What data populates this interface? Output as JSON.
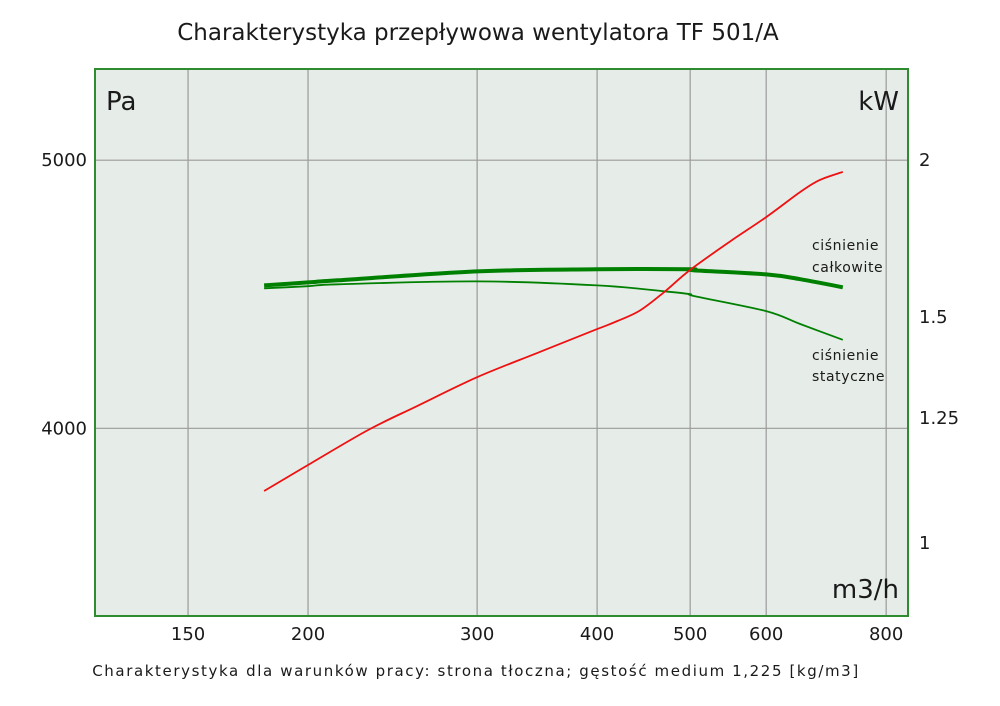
{
  "chart_data": {
    "type": "line",
    "title": "Charakterystyka przepływowa wentylatora TF 501/A",
    "footer": "Charakterystyka dla warunków pracy: strona tłoczna; gęstość medium 1,225 [kg/m3]",
    "xlabel": "m3/h",
    "ylabel_left": "Pa",
    "ylabel_right": "kW",
    "x_scale": "log",
    "xlim": [
      120,
      843
    ],
    "ylim_left": [
      3300,
      5340
    ],
    "x_ticks": [
      150,
      200,
      300,
      400,
      500,
      600,
      800
    ],
    "x_tick_labels": [
      "150",
      "200",
      "300",
      "400",
      "500",
      "600",
      "800"
    ],
    "y_left_ticks": [
      4000,
      5000
    ],
    "y_left_tick_labels": [
      "4000",
      "5000"
    ],
    "y_right_ticks": [
      2,
      1.5,
      1.25,
      1
    ],
    "y_right_tick_labels": [
      "2",
      "1.5",
      "1.25",
      "1"
    ],
    "grid": true,
    "colors": {
      "plot_bg": "#e6ece8",
      "frame": "#2e8b2e",
      "grid": "#9a9a9a",
      "pressure": "#008000",
      "power": "#ee1111"
    },
    "series": [
      {
        "name": "ciśnienie całkowite",
        "label_lines": [
          "ciśnienie",
          "całkowite"
        ],
        "axis": "left",
        "unit": "Pa",
        "style": "thick",
        "x": [
          180,
          200,
          215,
          300,
          400,
          500,
          505,
          600,
          651,
          721
        ],
        "y": [
          4533,
          4544,
          4552,
          4585,
          4593,
          4593,
          4589,
          4574,
          4556,
          4526
        ]
      },
      {
        "name": "ciśnienie statyczne",
        "label_lines": [
          "ciśnienie",
          "statyczne"
        ],
        "axis": "left",
        "unit": "Pa",
        "style": "thin",
        "x": [
          180,
          200,
          215,
          300,
          400,
          470,
          500,
          505,
          600,
          651,
          721
        ],
        "y": [
          4522,
          4530,
          4537,
          4548,
          4533,
          4511,
          4500,
          4493,
          4437,
          4389,
          4330
        ]
      },
      {
        "name": "moc",
        "axis": "right",
        "unit": "kW",
        "style": "red",
        "x": [
          180,
          200,
          231,
          260,
          300,
          350,
          400,
          420,
          444,
          470,
          500,
          550,
          600,
          651,
          682,
          721
        ],
        "y": [
          1.104,
          1.156,
          1.226,
          1.28,
          1.351,
          1.415,
          1.47,
          1.49,
          1.522,
          1.58,
          1.65,
          1.74,
          1.818,
          1.898,
          1.936,
          1.962
        ]
      }
    ]
  }
}
